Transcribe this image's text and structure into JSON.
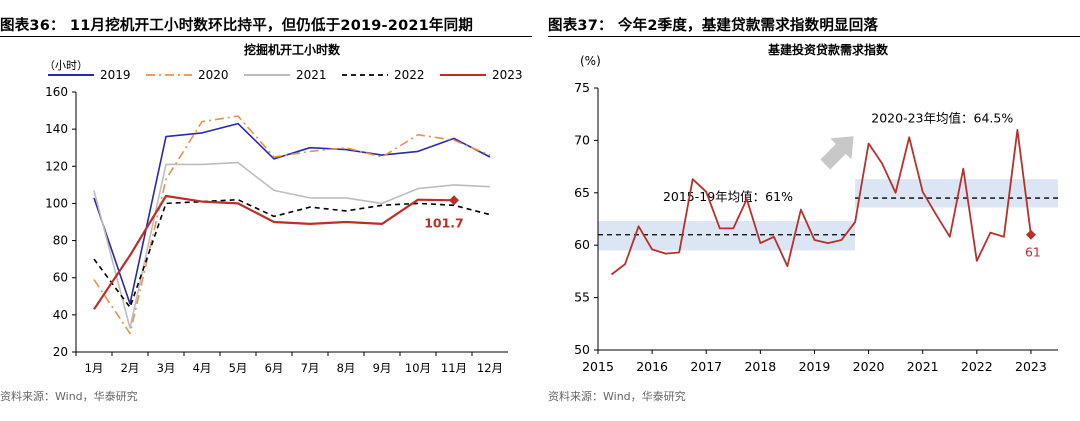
{
  "left": {
    "figure_title": "图表36： 11月挖机开工小时数环比持平，但仍低于2019-2021年同期",
    "source": "资料来源：Wind，华泰研究",
    "value_label": "101.7",
    "chart_data": {
      "type": "line",
      "title": "挖掘机开工小时数",
      "ylabel": "（小时）",
      "xlabel": "",
      "categories": [
        "1月",
        "2月",
        "3月",
        "4月",
        "5月",
        "6月",
        "7月",
        "8月",
        "9月",
        "10月",
        "11月",
        "12月"
      ],
      "ylim": [
        20,
        160
      ],
      "yticks": [
        20,
        40,
        60,
        80,
        100,
        120,
        140,
        160
      ],
      "grid": false,
      "legend": "top",
      "series": [
        {
          "name": "2019",
          "color": "#2a2aa8",
          "dash": "solid",
          "values": [
            103,
            46,
            136,
            138,
            143,
            124,
            130,
            129,
            126,
            128,
            135,
            125
          ]
        },
        {
          "name": "2020",
          "color": "#e8924a",
          "dash": "dashdot",
          "values": [
            59,
            30,
            113,
            144,
            147,
            125,
            128,
            130,
            125,
            137,
            134,
            126
          ]
        },
        {
          "name": "2021",
          "color": "#bdbdbd",
          "dash": "solid",
          "values": [
            107,
            33,
            121,
            121,
            122,
            107,
            103,
            103,
            100,
            108,
            110,
            109
          ]
        },
        {
          "name": "2022",
          "color": "#000000",
          "dash": "dash",
          "values": [
            70,
            44,
            100,
            101,
            102,
            93,
            98,
            96,
            99,
            100,
            99,
            94
          ]
        },
        {
          "name": "2023",
          "color": "#b8302a",
          "dash": "solid",
          "values": [
            43,
            72,
            104,
            101,
            100,
            90,
            89,
            90,
            89,
            102,
            101.7,
            null
          ]
        }
      ],
      "highlight": {
        "series": "2023",
        "category": "11月",
        "value": 101.7
      }
    }
  },
  "right": {
    "figure_title": "图表37： 今年2季度，基建贷款需求指数明显回落",
    "source": "资料来源：Wind，华泰研究",
    "chart_data": {
      "type": "line",
      "title": "基建投资贷款需求指数",
      "ylabel": "(%)",
      "xlabel": "",
      "xlim": [
        2015,
        2023.5
      ],
      "ylim": [
        50,
        75
      ],
      "xticks": [
        2015,
        2016,
        2017,
        2018,
        2019,
        2020,
        2021,
        2022,
        2023
      ],
      "yticks": [
        50,
        55,
        60,
        65,
        70,
        75
      ],
      "grid": false,
      "series": [
        {
          "name": "",
          "color": "#b8302a",
          "x": [
            2015.25,
            2015.5,
            2015.75,
            2016.0,
            2016.25,
            2016.5,
            2016.75,
            2017.0,
            2017.25,
            2017.5,
            2017.75,
            2018.0,
            2018.25,
            2018.5,
            2018.75,
            2019.0,
            2019.25,
            2019.5,
            2019.75,
            2020.0,
            2020.25,
            2020.5,
            2020.75,
            2021.0,
            2021.25,
            2021.5,
            2021.75,
            2022.0,
            2022.25,
            2022.5,
            2022.75,
            2023.0
          ],
          "values": [
            57.2,
            58.2,
            61.8,
            59.6,
            59.2,
            59.3,
            66.3,
            65.1,
            61.6,
            61.6,
            64.4,
            60.2,
            60.8,
            58.0,
            63.4,
            60.5,
            60.2,
            60.5,
            62.2,
            69.7,
            67.8,
            65.0,
            70.3,
            65.1,
            62.9,
            60.8,
            67.3,
            58.5,
            61.2,
            60.8,
            71.0,
            61.0
          ]
        }
      ],
      "averages": [
        {
          "label": "2015-19年均值：61%",
          "value": 61,
          "x": [
            2015,
            2019.75
          ],
          "band": [
            59.5,
            62.3
          ]
        },
        {
          "label": "2020-23年均值：64.5%",
          "value": 64.5,
          "x": [
            2019.75,
            2023.5
          ],
          "band": [
            63.6,
            66.3
          ]
        }
      ],
      "last_point_label": "61"
    }
  }
}
